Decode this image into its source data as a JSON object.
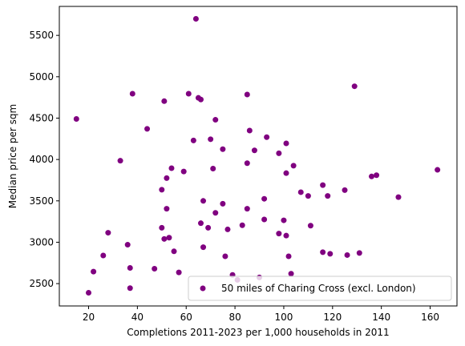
{
  "chart_data": {
    "type": "scatter",
    "xlabel": "Completions 2011-2023 per 1,000 households in 2011",
    "ylabel": "Median price per sqm",
    "xlim": [
      8,
      171
    ],
    "ylim": [
      2230,
      5850
    ],
    "xticks": [
      20,
      40,
      60,
      80,
      100,
      120,
      140,
      160
    ],
    "yticks": [
      2500,
      3000,
      3500,
      4000,
      4500,
      5000,
      5500
    ],
    "grid": false,
    "legend_position": "lower right",
    "series": [
      {
        "name": "50 miles of Charing Cross (excl. London)",
        "color": "#800080",
        "points": [
          [
            15,
            4490
          ],
          [
            20,
            2390
          ],
          [
            22,
            2645
          ],
          [
            26,
            2840
          ],
          [
            28,
            3115
          ],
          [
            33,
            3985
          ],
          [
            36,
            2970
          ],
          [
            37,
            2445
          ],
          [
            37,
            2690
          ],
          [
            38,
            4795
          ],
          [
            44,
            4370
          ],
          [
            47,
            2680
          ],
          [
            50,
            3175
          ],
          [
            50,
            3635
          ],
          [
            51,
            3040
          ],
          [
            51,
            4705
          ],
          [
            52,
            3775
          ],
          [
            52,
            3405
          ],
          [
            53,
            3055
          ],
          [
            54,
            3895
          ],
          [
            55,
            2890
          ],
          [
            57,
            2635
          ],
          [
            59,
            3855
          ],
          [
            61,
            4795
          ],
          [
            63,
            4230
          ],
          [
            64,
            5700
          ],
          [
            65,
            4745
          ],
          [
            66,
            4725
          ],
          [
            66,
            3230
          ],
          [
            67,
            2940
          ],
          [
            67,
            3500
          ],
          [
            69,
            3175
          ],
          [
            70,
            4245
          ],
          [
            71,
            3890
          ],
          [
            72,
            4480
          ],
          [
            72,
            3355
          ],
          [
            75,
            4125
          ],
          [
            75,
            3465
          ],
          [
            76,
            2830
          ],
          [
            77,
            3155
          ],
          [
            79,
            2605
          ],
          [
            81,
            2545
          ],
          [
            83,
            3205
          ],
          [
            85,
            4785
          ],
          [
            85,
            3955
          ],
          [
            85,
            3405
          ],
          [
            86,
            4350
          ],
          [
            88,
            4110
          ],
          [
            90,
            2575
          ],
          [
            92,
            3525
          ],
          [
            92,
            3275
          ],
          [
            93,
            4270
          ],
          [
            98,
            4075
          ],
          [
            98,
            3105
          ],
          [
            100,
            3265
          ],
          [
            101,
            4195
          ],
          [
            101,
            3835
          ],
          [
            101,
            3080
          ],
          [
            102,
            2830
          ],
          [
            103,
            2620
          ],
          [
            104,
            3925
          ],
          [
            107,
            3605
          ],
          [
            110,
            3560
          ],
          [
            111,
            3200
          ],
          [
            116,
            3690
          ],
          [
            116,
            2880
          ],
          [
            118,
            3560
          ],
          [
            119,
            2860
          ],
          [
            125,
            3630
          ],
          [
            126,
            2845
          ],
          [
            129,
            4885
          ],
          [
            131,
            2870
          ],
          [
            136,
            3795
          ],
          [
            138,
            3810
          ],
          [
            147,
            3545
          ],
          [
            163,
            3875
          ]
        ]
      }
    ]
  }
}
